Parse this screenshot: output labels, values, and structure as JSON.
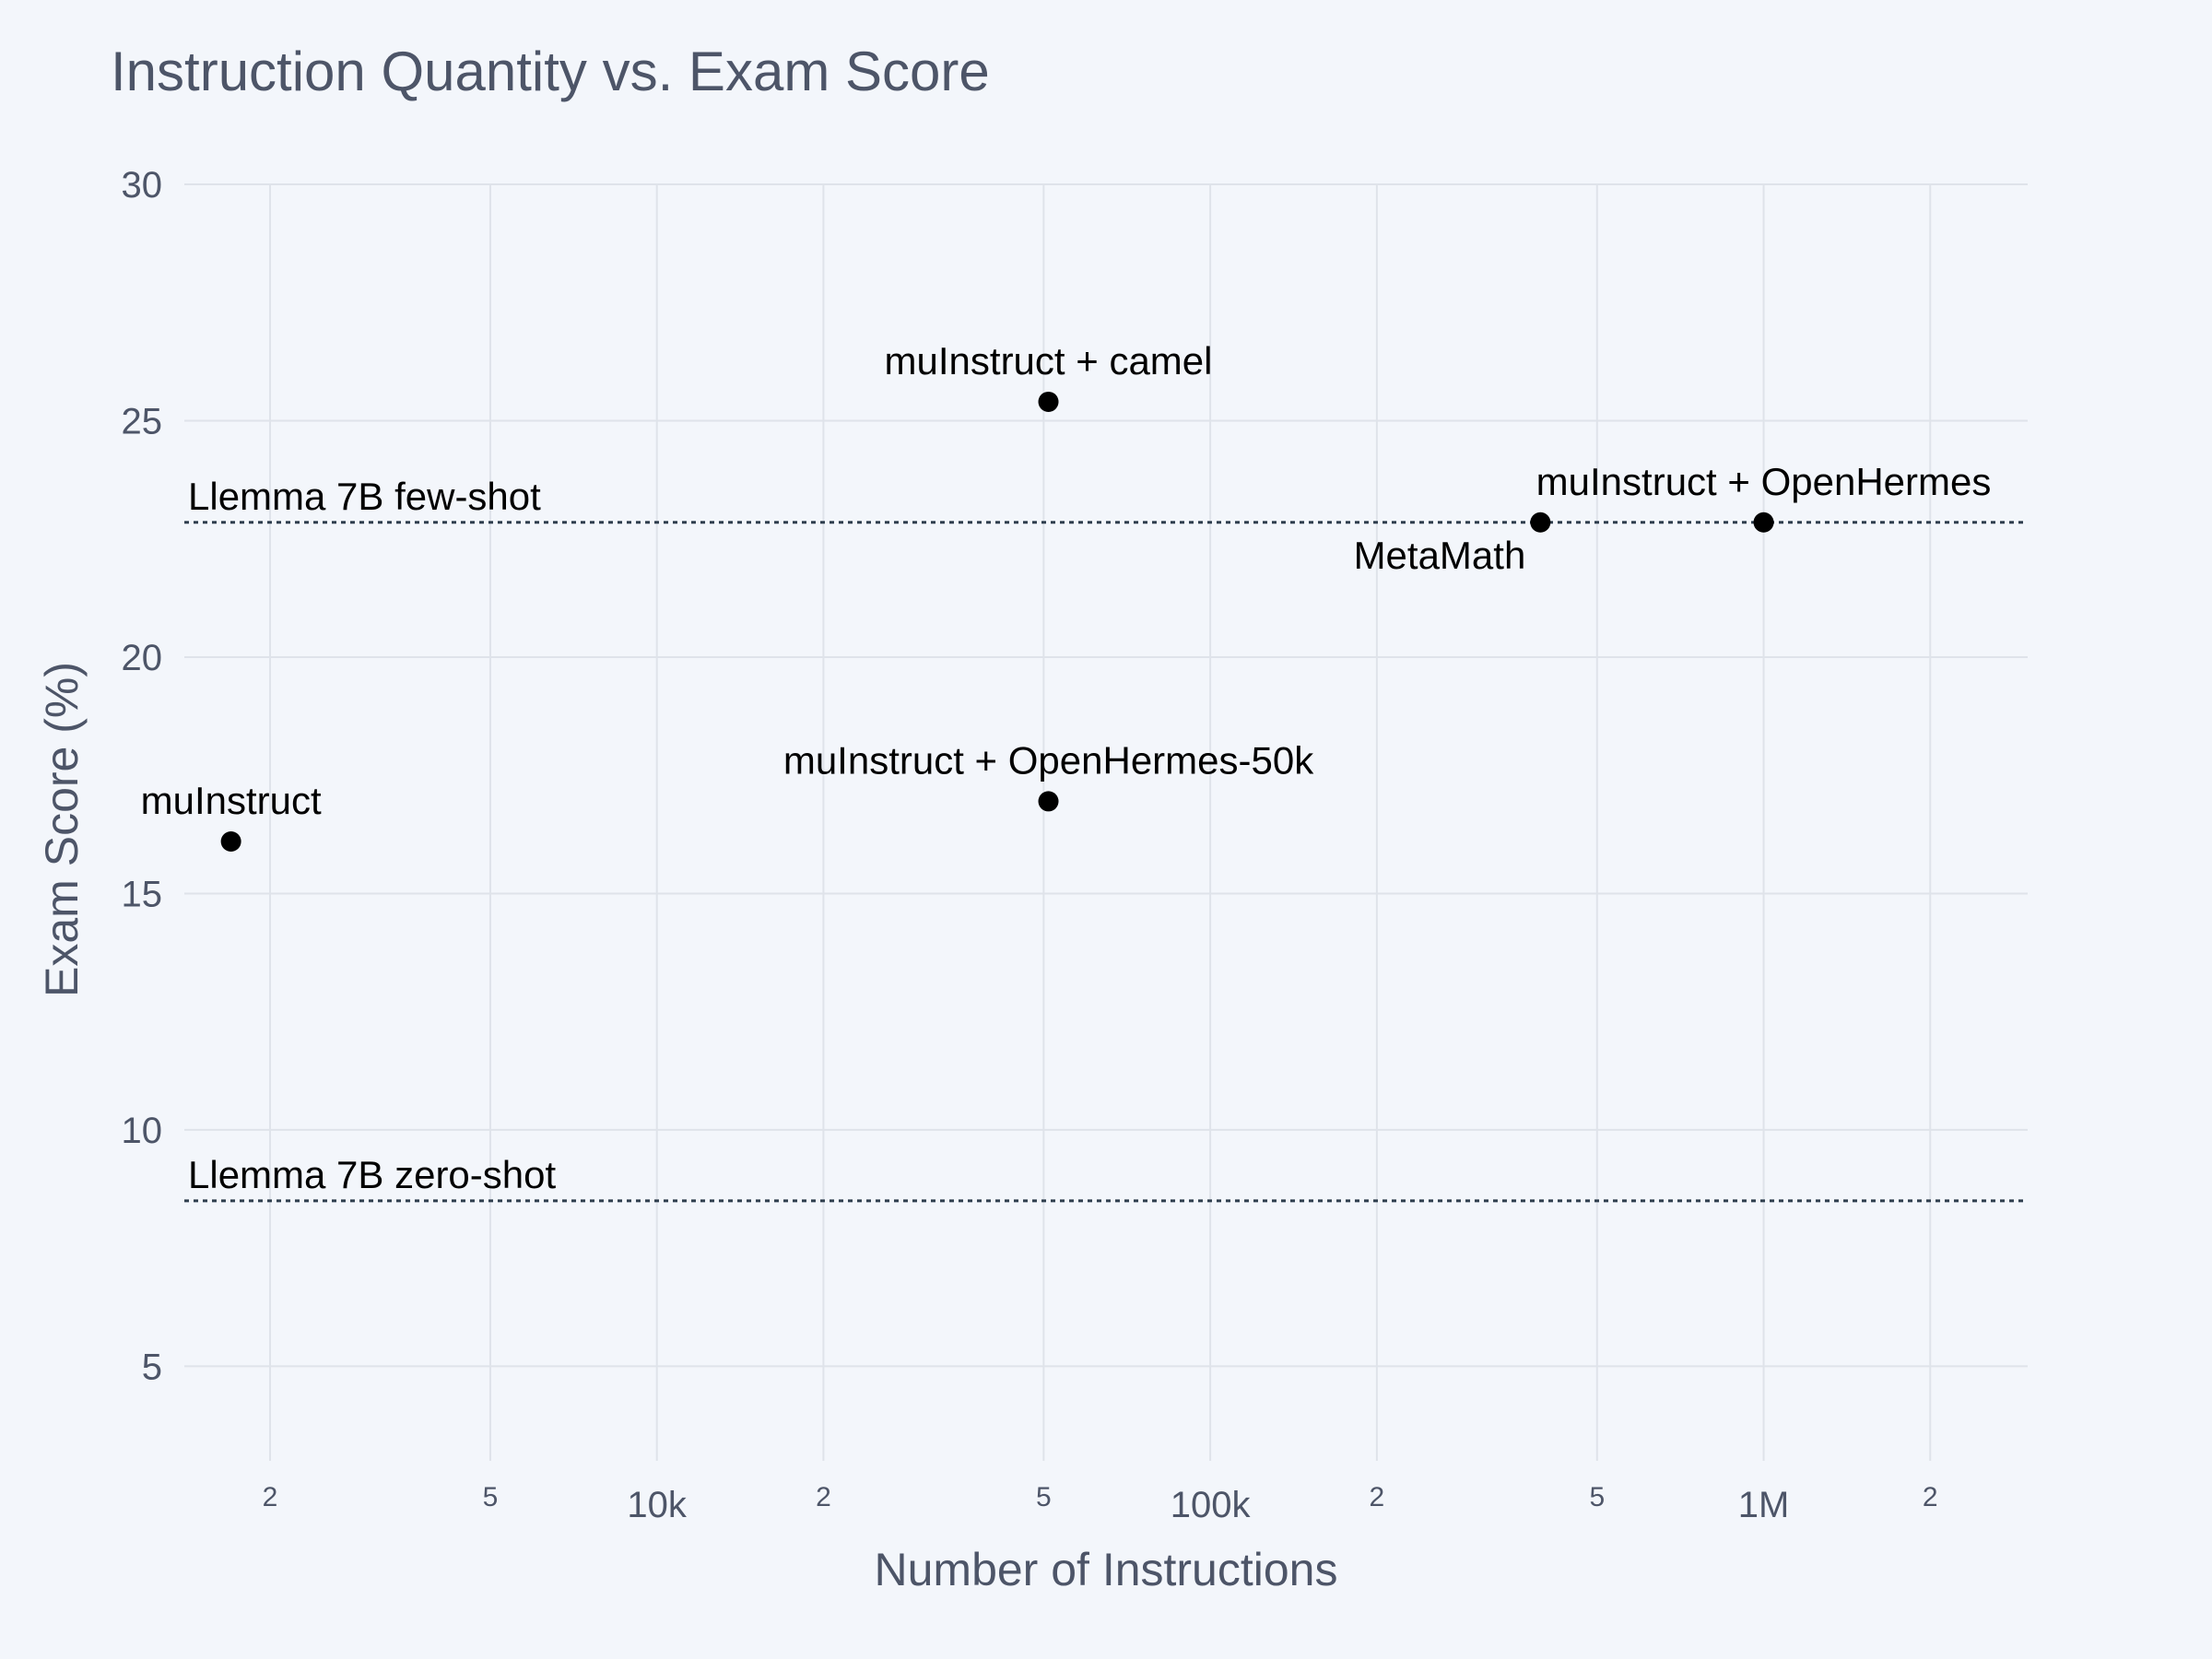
{
  "chart_data": {
    "type": "scatter",
    "title": "Instruction Quantity vs. Exam Score",
    "xlabel": "Number of Instructions",
    "ylabel": "Exam Score (%)",
    "x_scale": "log",
    "xlim": [
      1400,
      3000000
    ],
    "ylim": [
      3,
      30
    ],
    "grid": true,
    "y_ticks": [
      5,
      10,
      15,
      20,
      25,
      30
    ],
    "x_ticks": [
      {
        "value": 2000,
        "label": "2",
        "major": false
      },
      {
        "value": 5000,
        "label": "5",
        "major": false
      },
      {
        "value": 10000,
        "label": "10k",
        "major": true
      },
      {
        "value": 20000,
        "label": "2",
        "major": false
      },
      {
        "value": 50000,
        "label": "5",
        "major": false
      },
      {
        "value": 100000,
        "label": "100k",
        "major": true
      },
      {
        "value": 200000,
        "label": "2",
        "major": false
      },
      {
        "value": 500000,
        "label": "5",
        "major": false
      },
      {
        "value": 1000000,
        "label": "1M",
        "major": true
      },
      {
        "value": 2000000,
        "label": "2",
        "major": false
      }
    ],
    "points": [
      {
        "label": "muInstruct",
        "x": 1700,
        "y": 16.1,
        "label_position": "top"
      },
      {
        "label": "muInstruct + camel",
        "x": 51000,
        "y": 25.4,
        "label_position": "top"
      },
      {
        "label": "muInstruct + OpenHermes-50k",
        "x": 51000,
        "y": 16.95,
        "label_position": "top"
      },
      {
        "label": "MetaMath",
        "x": 395000,
        "y": 22.85,
        "label_position": "bottom-left"
      },
      {
        "label": "muInstruct + OpenHermes",
        "x": 1000000,
        "y": 22.85,
        "label_position": "top"
      }
    ],
    "reference_lines": [
      {
        "label": "Llemma 7B few-shot",
        "y": 22.85
      },
      {
        "label": "Llemma 7B zero-shot",
        "y": 8.5
      }
    ]
  }
}
